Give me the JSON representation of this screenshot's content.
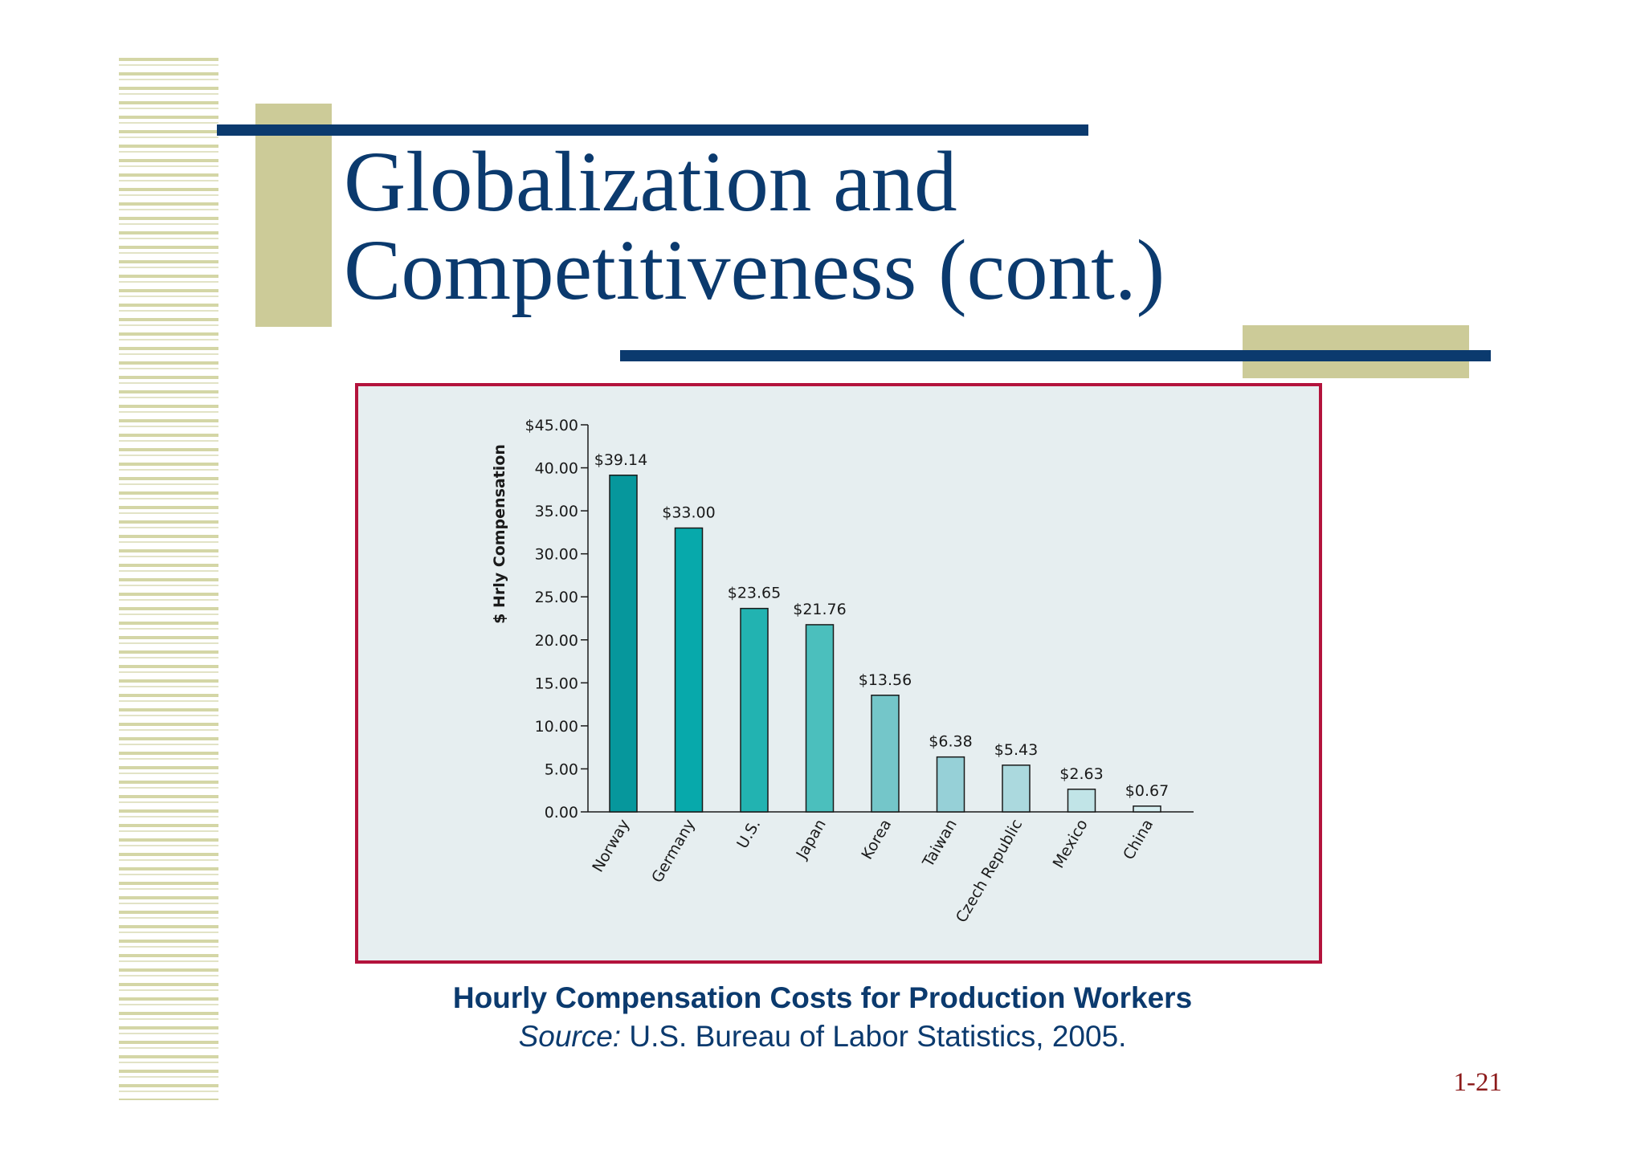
{
  "slide": {
    "title_line1": "Globalization and",
    "title_line2": "Competitiveness (cont.)",
    "caption_title": "Hourly Compensation Costs for Production Workers",
    "source_label": "Source:",
    "source_text": " U.S. Bureau of Labor Statistics, 2005.",
    "slide_number": "1-21"
  },
  "colors": {
    "title": "#0b3a6e",
    "frame_border": "#b3133c",
    "chart_background": "#e6eef0",
    "bar_outline": "#1a1a1a"
  },
  "chart_data": {
    "type": "bar",
    "title": "",
    "xlabel": "",
    "ylabel": "$ Hrly Compensation",
    "ylim": [
      0,
      45
    ],
    "yticks": [
      "0.00",
      "5.00",
      "10.00",
      "15.00",
      "20.00",
      "25.00",
      "30.00",
      "35.00",
      "40.00",
      "$45.00"
    ],
    "ytick_values": [
      0,
      5,
      10,
      15,
      20,
      25,
      30,
      35,
      40,
      45
    ],
    "grid": false,
    "legend": "none",
    "categories": [
      "Norway",
      "Germany",
      "U.S.",
      "Japan",
      "Korea",
      "Taiwan",
      "Czech Republic",
      "Mexico",
      "China"
    ],
    "values": [
      39.14,
      33.0,
      23.65,
      21.76,
      13.56,
      6.38,
      5.43,
      2.63,
      0.67
    ],
    "data_labels": [
      "$39.14",
      "$33.00",
      "$23.65",
      "$21.76",
      "$13.56",
      "$6.38",
      "$5.43",
      "$2.63",
      "$0.67"
    ],
    "bar_colors": [
      "#06979c",
      "#07a9ab",
      "#22b3b1",
      "#4bbfbd",
      "#74c6c9",
      "#96d0d7",
      "#abd9de",
      "#c1e4e7",
      "#d6eef0"
    ]
  }
}
